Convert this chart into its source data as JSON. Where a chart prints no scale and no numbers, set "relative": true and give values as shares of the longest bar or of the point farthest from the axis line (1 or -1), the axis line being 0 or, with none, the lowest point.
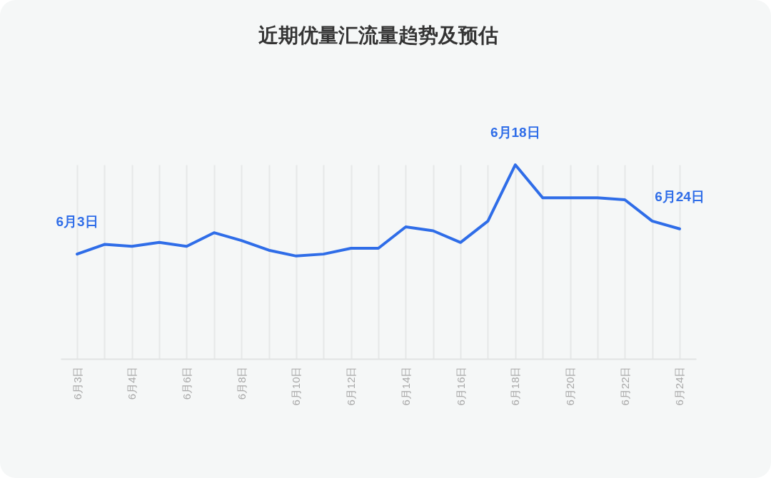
{
  "chart_data": {
    "type": "line",
    "title": "近期优量汇流量趋势及预估",
    "relative": true,
    "grid": "x",
    "marker": "none",
    "line_style": "solid",
    "categories": [
      "6月3日",
      null,
      "6月4日",
      null,
      "6月6日",
      null,
      "6月8日",
      null,
      "6月10日",
      null,
      "6月12日",
      null,
      "6月14日",
      null,
      "6月16日",
      null,
      "6月18日",
      null,
      "6月20日",
      null,
      "6月22日",
      null,
      "6月24日"
    ],
    "series": [
      {
        "color": "#2f6de8",
        "values": [
          0.54,
          0.59,
          0.58,
          0.6,
          0.58,
          0.65,
          0.61,
          0.56,
          0.53,
          0.54,
          0.57,
          0.57,
          0.68,
          0.66,
          0.6,
          0.71,
          1,
          0.83,
          0.83,
          0.83,
          0.82,
          0.71,
          0.67
        ]
      }
    ],
    "annotations": [
      {
        "text": "6月3日",
        "x": "6月3日",
        "y": 0.54
      },
      {
        "text": "6月18日",
        "x": "6月18日",
        "y": 1
      },
      {
        "text": "6月24日",
        "x": "6月24日",
        "y": 0.67
      }
    ]
  }
}
